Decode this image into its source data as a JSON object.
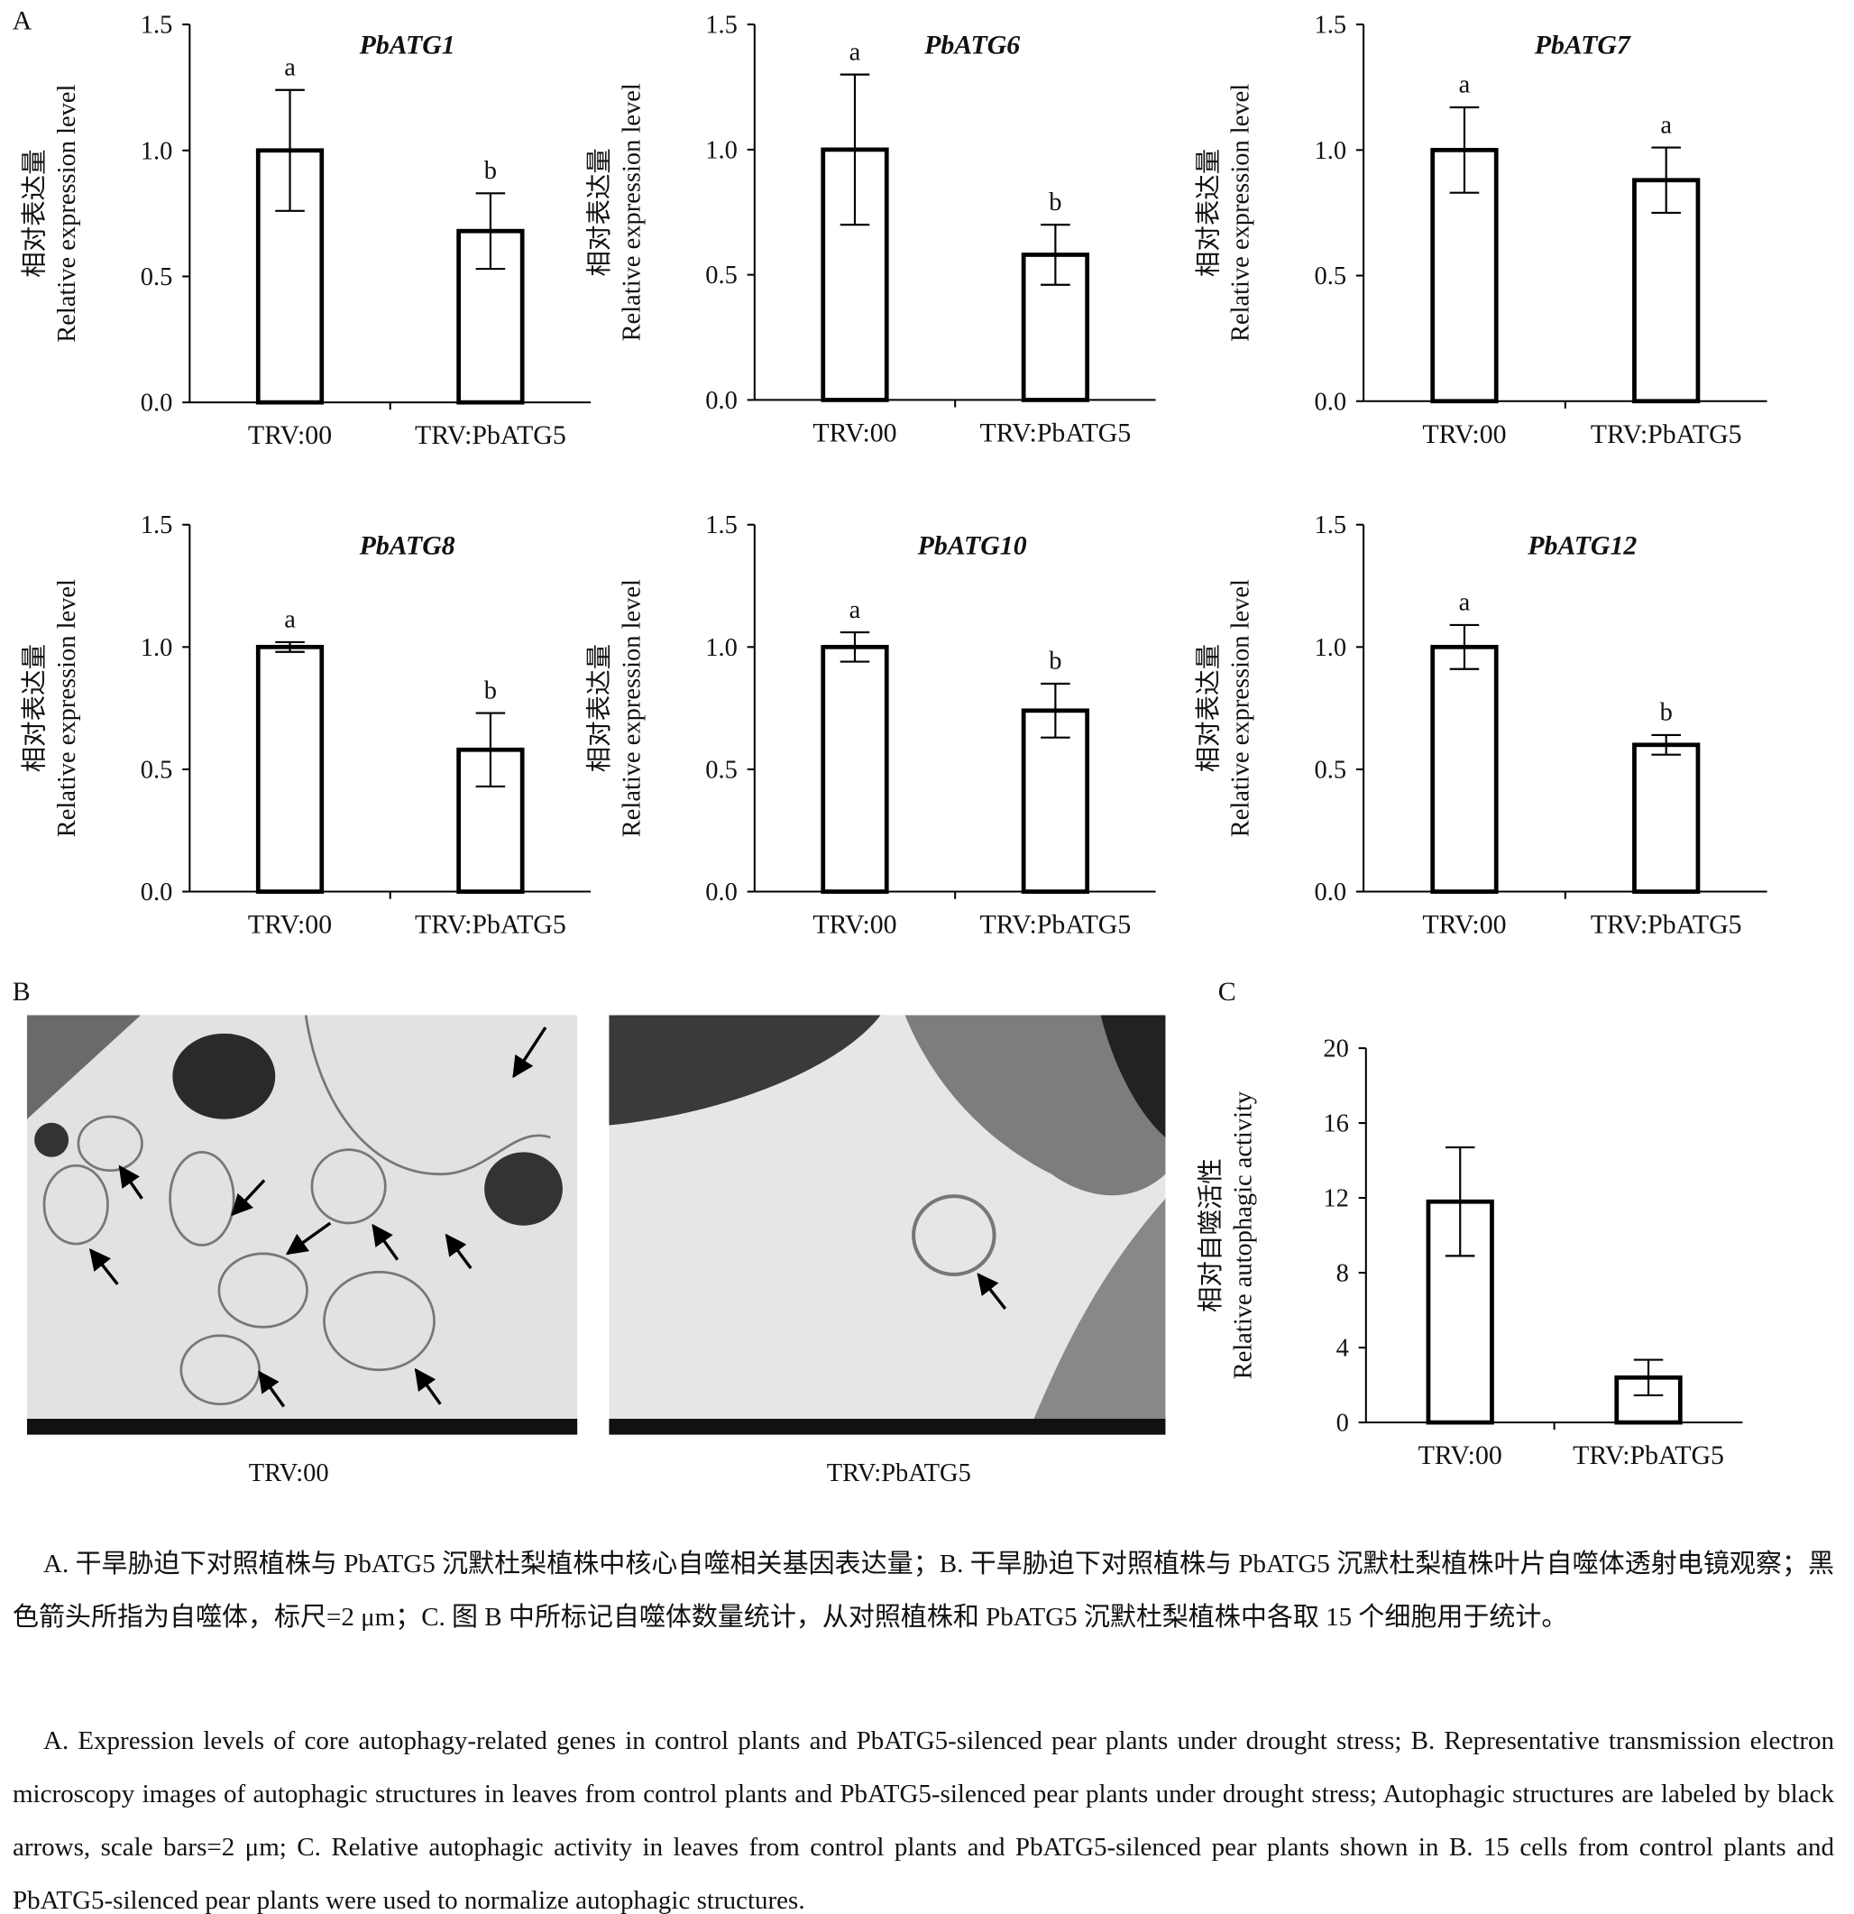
{
  "panel_labels": [
    "A",
    "B",
    "C"
  ],
  "chart_data": [
    {
      "type": "bar",
      "title": "PbATG1",
      "ylabel": [
        "相对表达量",
        "Relative expression level"
      ],
      "categories": [
        "TRV:00",
        "TRV:PbATG5"
      ],
      "values": [
        1.0,
        0.68
      ],
      "errors": [
        0.24,
        0.15
      ],
      "letters": [
        "a",
        "b"
      ],
      "color": "#ffffff",
      "edgecolor": "#000000",
      "ylim": [
        0,
        1.5
      ],
      "yticks": [
        {
          "value": 0,
          "label": "0.0"
        },
        0.5,
        {
          "value": 1,
          "label": "1.0"
        },
        1.5
      ]
    },
    {
      "type": "bar",
      "title": "PbATG6",
      "ylabel": [
        "相对表达量",
        "Relative expression level"
      ],
      "categories": [
        "TRV:00",
        "TRV:PbATG5"
      ],
      "values": [
        1.0,
        0.58
      ],
      "errors": [
        0.3,
        0.12
      ],
      "letters": [
        "a",
        "b"
      ],
      "color": "#ffffff",
      "edgecolor": "#000000",
      "ylim": [
        0,
        1.5
      ],
      "yticks": [
        {
          "value": 0,
          "label": "0.0"
        },
        0.5,
        {
          "value": 1,
          "label": "1.0"
        },
        1.5
      ]
    },
    {
      "type": "bar",
      "title": "PbATG7",
      "ylabel": [
        "相对表达量",
        "Relative expression level"
      ],
      "categories": [
        "TRV:00",
        "TRV:PbATG5"
      ],
      "values": [
        1.0,
        0.88
      ],
      "errors": [
        0.17,
        0.13
      ],
      "letters": [
        "a",
        "a"
      ],
      "color": "#ffffff",
      "edgecolor": "#000000",
      "ylim": [
        0,
        1.5
      ],
      "yticks": [
        {
          "value": 0,
          "label": "0.0"
        },
        0.5,
        {
          "value": 1,
          "label": "1.0"
        },
        1.5
      ]
    },
    {
      "type": "bar",
      "title": "PbATG8",
      "ylabel": [
        "相对表达量",
        "Relative expression level"
      ],
      "categories": [
        "TRV:00",
        "TRV:PbATG5"
      ],
      "values": [
        1.0,
        0.58
      ],
      "errors": [
        0.02,
        0.15
      ],
      "letters": [
        "a",
        "b"
      ],
      "color": "#ffffff",
      "edgecolor": "#000000",
      "ylim": [
        0,
        1.5
      ],
      "yticks": [
        {
          "value": 0,
          "label": "0.0"
        },
        0.5,
        {
          "value": 1,
          "label": "1.0"
        },
        1.5
      ]
    },
    {
      "type": "bar",
      "title": "PbATG10",
      "ylabel": [
        "相对表达量",
        "Relative expression level"
      ],
      "categories": [
        "TRV:00",
        "TRV:PbATG5"
      ],
      "values": [
        1.0,
        0.74
      ],
      "errors": [
        0.06,
        0.11
      ],
      "letters": [
        "a",
        "b"
      ],
      "color": "#ffffff",
      "edgecolor": "#000000",
      "ylim": [
        0,
        1.5
      ],
      "yticks": [
        {
          "value": 0,
          "label": "0.0"
        },
        0.5,
        {
          "value": 1,
          "label": "1.0"
        },
        1.5
      ]
    },
    {
      "type": "bar",
      "title": "PbATG12",
      "ylabel": [
        "相对表达量",
        "Relative expression level"
      ],
      "categories": [
        "TRV:00",
        "TRV:PbATG5"
      ],
      "values": [
        1.0,
        0.6
      ],
      "errors": [
        0.09,
        0.04
      ],
      "letters": [
        "a",
        "b"
      ],
      "color": "#ffffff",
      "edgecolor": "#000000",
      "ylim": [
        0,
        1.5
      ],
      "yticks": [
        {
          "value": 0,
          "label": "0.0"
        },
        0.5,
        {
          "value": 1,
          "label": "1.0"
        },
        1.5
      ]
    },
    {
      "type": "bar",
      "ylabel": [
        "相对自噬活性",
        "Relative autophagic activity"
      ],
      "categories": [
        "TRV:00",
        "TRV:PbATG5"
      ],
      "values": [
        11.8,
        2.4
      ],
      "errors": [
        2.9,
        0.95
      ],
      "color": "#ffffff",
      "edgecolor": "#000000",
      "ylim": [
        0,
        20
      ],
      "yticks": [
        0,
        4,
        8,
        12,
        16,
        20
      ]
    }
  ],
  "images": [
    {
      "label": "TRV:00"
    },
    {
      "label": "TRV:PbATG5"
    }
  ],
  "caption": [
    "A. 干旱胁迫下对照植株与 PbATG5 沉默杜梨植株中核心自噬相关基因表达量；B. 干旱胁迫下对照植株与 PbATG5 沉默杜梨植株叶片自噬体透射电镜观察；黑色箭头所指为自噬体，标尺=2 μm；C. 图 B 中所标记自噬体数量统计，从对照植株和 PbATG5 沉默杜梨植株中各取 15 个细胞用于统计。",
    "A. Expression levels of core autophagy-related genes in control plants and PbATG5-silenced pear plants under drought stress; B. Representative transmission electron microscopy images of autophagic structures in leaves from control plants and PbATG5-silenced pear plants under drought stress; Autophagic structures are labeled by black arrows, scale bars=2 μm; C. Relative autophagic activity in leaves from control plants and PbATG5-silenced pear plants shown in B. 15 cells from control plants and PbATG5-silenced pear plants were used to normalize autophagic structures."
  ]
}
